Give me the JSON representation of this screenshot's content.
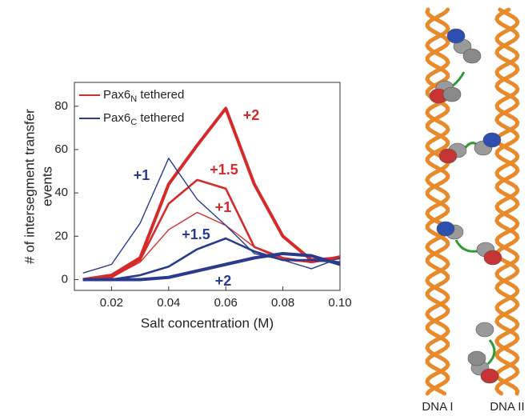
{
  "chart_data": {
    "type": "line",
    "x": [
      0.01,
      0.02,
      0.03,
      0.04,
      0.05,
      0.06,
      0.07,
      0.08,
      0.09,
      0.1
    ],
    "series": [
      {
        "name": "+2",
        "color": "#d42a2a",
        "line_width": 4,
        "values": [
          0,
          2,
          10,
          44,
          62,
          79,
          44,
          20,
          9,
          10
        ]
      },
      {
        "name": "+1.5",
        "color": "#d42a2a",
        "line_width": 2.6,
        "values": [
          0,
          1,
          9,
          35,
          46,
          42,
          15,
          10,
          8,
          10
        ]
      },
      {
        "name": "+1",
        "color": "#d42a2a",
        "line_width": 1.4,
        "values": [
          0,
          1,
          8,
          23,
          31,
          25,
          15,
          9,
          8,
          11
        ]
      },
      {
        "name": "+1",
        "color": "#2a3a8c",
        "line_width": 1.4,
        "values": [
          3,
          7,
          26,
          56,
          37,
          25,
          12,
          9,
          5,
          10
        ]
      },
      {
        "name": "+1.5",
        "color": "#2a3a8c",
        "line_width": 2.6,
        "values": [
          0,
          0,
          2,
          6,
          14,
          19,
          13,
          9,
          9,
          8
        ]
      },
      {
        "name": "+2",
        "color": "#2a3a8c",
        "line_width": 4,
        "values": [
          0,
          0,
          0,
          1,
          4,
          7,
          10,
          12,
          11,
          7
        ]
      }
    ],
    "legend": [
      {
        "label": "Pax6",
        "subscript": "N",
        "suffix": " tethered",
        "color": "#d42a2a"
      },
      {
        "label": "Pax6",
        "subscript": "C",
        "suffix": " tethered",
        "color": "#2a3a8c"
      }
    ],
    "legend_position": "upper left",
    "xlabel": "Salt concentration (M)",
    "ylabel": [
      "# of intersegment transfer",
      "events"
    ],
    "xlim": [
      0.007,
      0.1
    ],
    "ylim": [
      -5,
      91
    ],
    "xticks": [
      {
        "value": 0.02,
        "label": "0.02"
      },
      {
        "value": 0.04,
        "label": "0.04"
      },
      {
        "value": 0.06,
        "label": "0.06"
      },
      {
        "value": 0.08,
        "label": "0.08"
      },
      {
        "value": 0.1,
        "label": "0.10"
      }
    ],
    "yticks": [
      0,
      20,
      40,
      60,
      80
    ]
  },
  "illustration": {
    "labels": [
      "DNA I",
      "DNA II"
    ]
  }
}
